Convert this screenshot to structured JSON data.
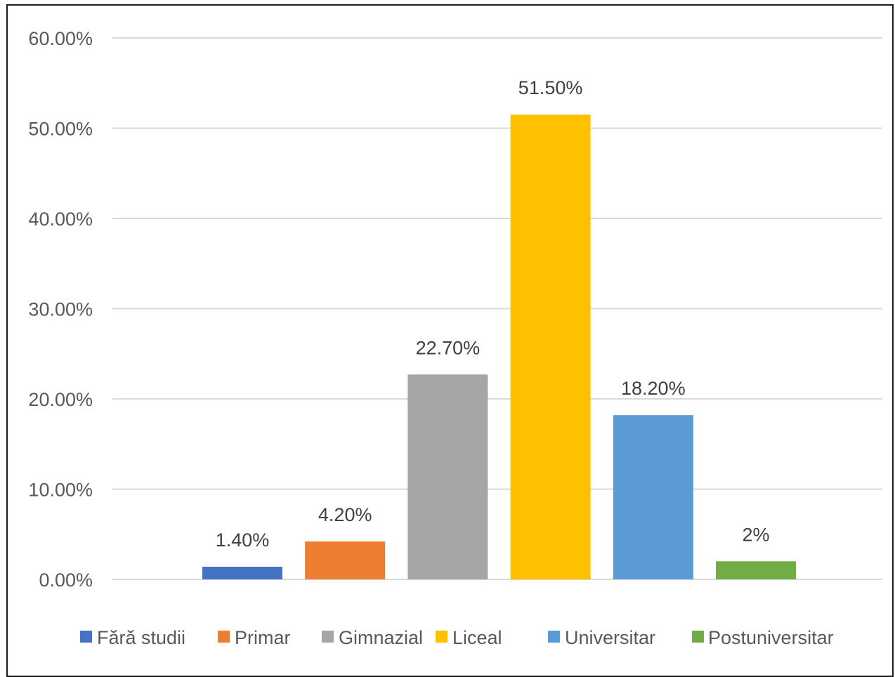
{
  "chart_data": {
    "type": "bar",
    "categories": [
      "Fără studii",
      "Primar",
      "Gimnazial",
      "Liceal",
      "Universitar",
      "Postuniversitar"
    ],
    "values": [
      1.4,
      4.2,
      22.7,
      51.5,
      18.2,
      2
    ],
    "data_labels": [
      "1.40%",
      "4.20%",
      "22.70%",
      "51.50%",
      "18.20%",
      "2%"
    ],
    "colors": [
      "#4472C4",
      "#ED7D31",
      "#A5A5A5",
      "#FFC000",
      "#5B9BD5",
      "#70AD47"
    ],
    "y_tick_labels": [
      "0.00%",
      "10.00%",
      "20.00%",
      "30.00%",
      "40.00%",
      "50.00%",
      "60.00%"
    ],
    "ylim": [
      0,
      60
    ],
    "grid": true,
    "legend_position": "bottom",
    "title": "",
    "xlabel": "",
    "ylabel": ""
  }
}
